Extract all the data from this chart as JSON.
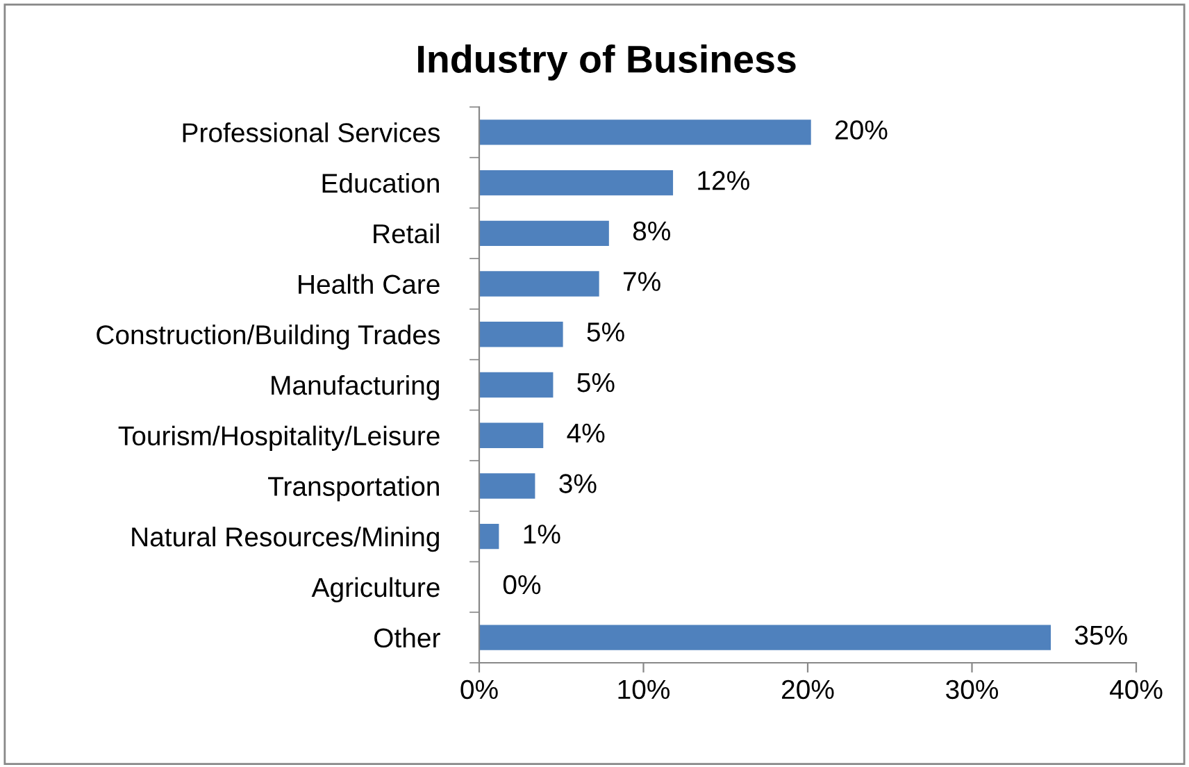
{
  "chart_data": {
    "type": "bar",
    "orientation": "horizontal",
    "title": "Industry of Business",
    "categories": [
      "Professional Services",
      "Education",
      "Retail",
      "Health Care",
      "Construction/Building Trades",
      "Manufacturing",
      "Tourism/Hospitality/Leisure",
      "Transportation",
      "Natural Resources/Mining",
      "Agriculture",
      "Other"
    ],
    "values": [
      20.2,
      11.8,
      7.9,
      7.3,
      5.1,
      4.5,
      3.9,
      3.4,
      1.2,
      0,
      34.8
    ],
    "value_labels": [
      "20%",
      "12%",
      "8%",
      "7%",
      "5%",
      "5%",
      "4%",
      "3%",
      "1%",
      "0%",
      "35%"
    ],
    "color": "#4f81bd",
    "xlim": [
      0,
      40
    ],
    "xticks": [
      {
        "value": 0,
        "label": "0%"
      },
      {
        "value": 10,
        "label": "10%"
      },
      {
        "value": 20,
        "label": "20%"
      },
      {
        "value": 30,
        "label": "30%"
      },
      {
        "value": 40,
        "label": "40%"
      }
    ],
    "grid": false,
    "legend": false
  }
}
